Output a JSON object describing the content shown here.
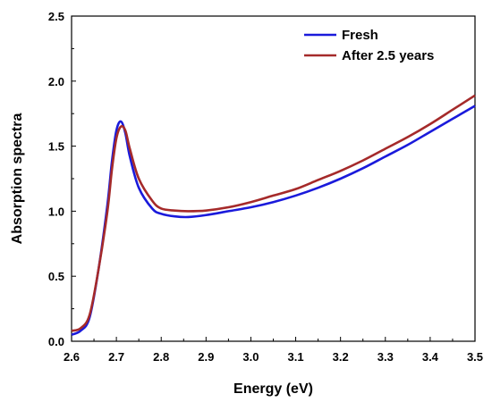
{
  "chart_data": {
    "type": "line",
    "title": "",
    "xlabel": "Energy (eV)",
    "ylabel": "Absorption spectra",
    "xlim": [
      2.6,
      3.5
    ],
    "ylim": [
      0.0,
      2.5
    ],
    "xticks": [
      "2.6",
      "2.7",
      "2.8",
      "2.9",
      "3.0",
      "3.1",
      "3.2",
      "3.3",
      "3.4",
      "3.5"
    ],
    "yticks": [
      "0.0",
      "0.5",
      "1.0",
      "1.5",
      "2.0",
      "2.5"
    ],
    "grid": false,
    "legend_position": "top-right",
    "series": [
      {
        "name": "Fresh",
        "color": "#1a1adb",
        "x": [
          2.6,
          2.62,
          2.64,
          2.66,
          2.68,
          2.69,
          2.7,
          2.71,
          2.72,
          2.73,
          2.75,
          2.78,
          2.8,
          2.83,
          2.86,
          2.9,
          2.95,
          3.0,
          3.05,
          3.1,
          3.15,
          3.2,
          3.25,
          3.3,
          3.35,
          3.4,
          3.45,
          3.5
        ],
        "y": [
          0.05,
          0.08,
          0.18,
          0.55,
          1.05,
          1.38,
          1.62,
          1.69,
          1.6,
          1.42,
          1.18,
          1.02,
          0.98,
          0.96,
          0.955,
          0.97,
          1.0,
          1.03,
          1.07,
          1.12,
          1.18,
          1.25,
          1.33,
          1.42,
          1.51,
          1.61,
          1.71,
          1.81
        ]
      },
      {
        "name": "After 2.5 years",
        "color": "#a52a2a",
        "x": [
          2.6,
          2.62,
          2.64,
          2.66,
          2.68,
          2.69,
          2.7,
          2.71,
          2.72,
          2.73,
          2.75,
          2.78,
          2.8,
          2.83,
          2.86,
          2.9,
          2.95,
          3.0,
          3.05,
          3.1,
          3.15,
          3.2,
          3.25,
          3.3,
          3.35,
          3.4,
          3.45,
          3.5
        ],
        "y": [
          0.08,
          0.1,
          0.2,
          0.55,
          1.0,
          1.32,
          1.56,
          1.65,
          1.62,
          1.48,
          1.25,
          1.08,
          1.02,
          1.005,
          1.0,
          1.005,
          1.03,
          1.07,
          1.12,
          1.17,
          1.24,
          1.31,
          1.39,
          1.48,
          1.57,
          1.67,
          1.78,
          1.89
        ]
      }
    ]
  }
}
